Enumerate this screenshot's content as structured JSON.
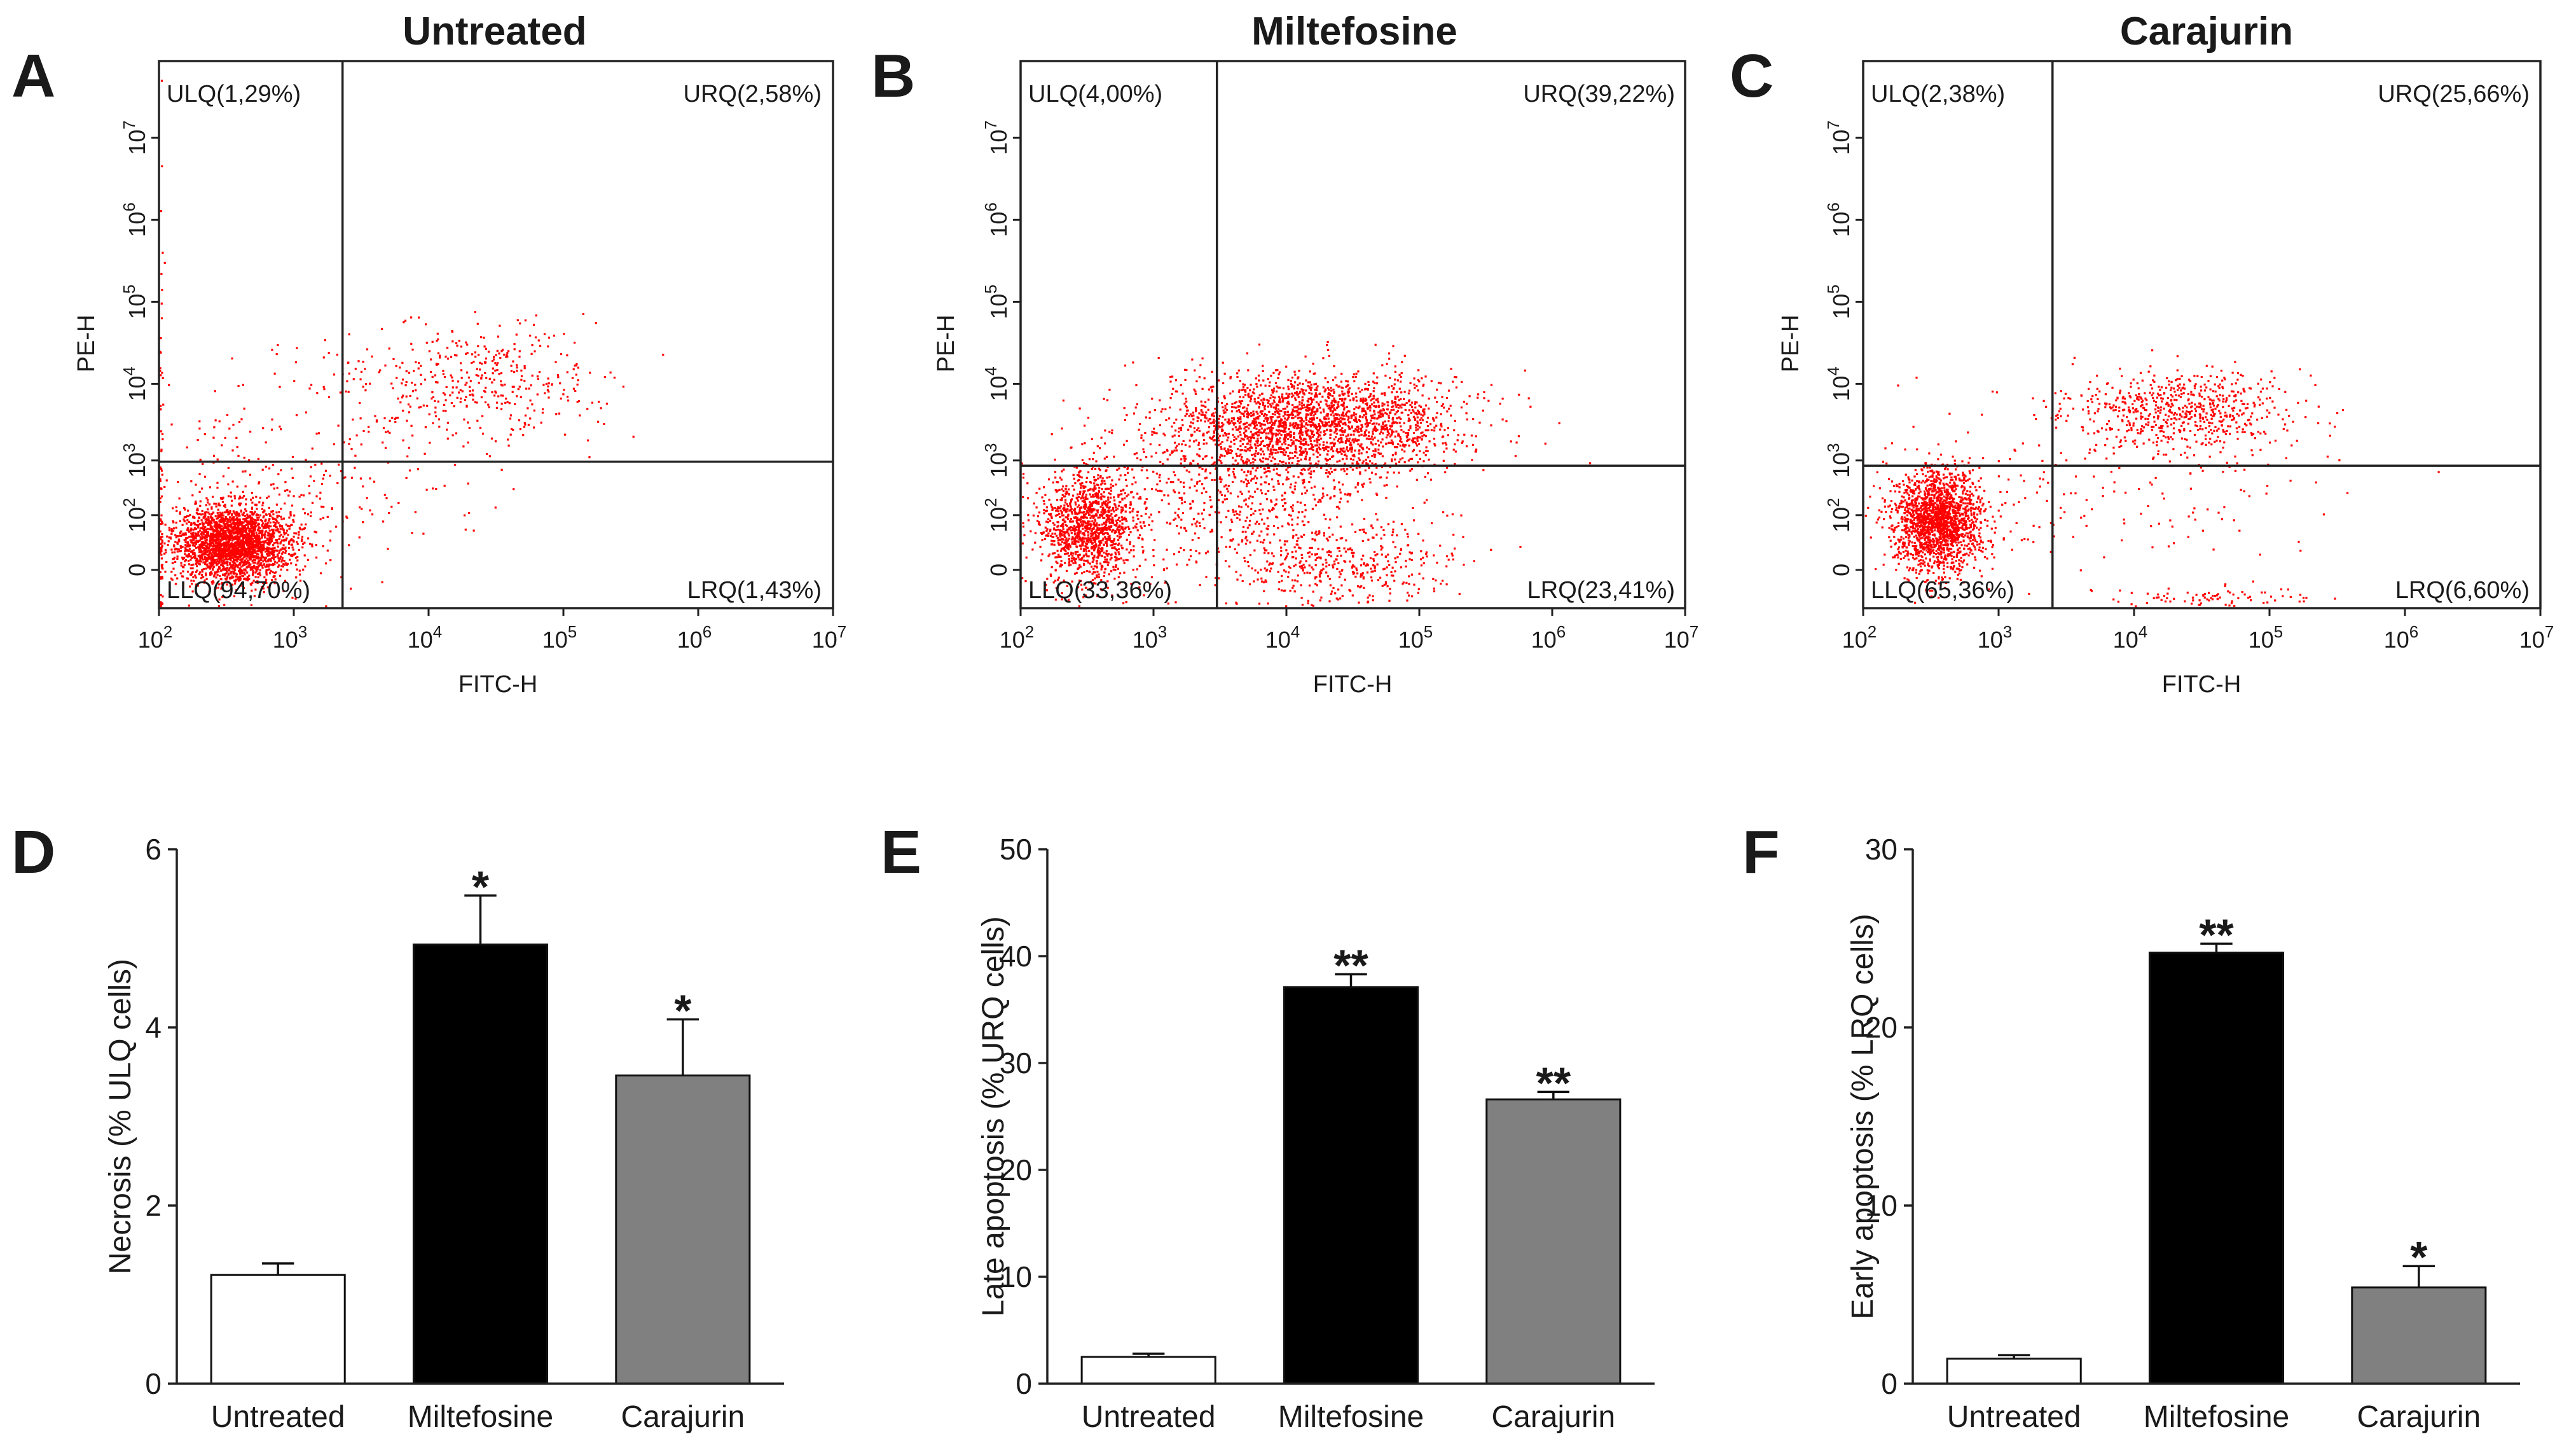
{
  "figure": {
    "panels": {
      "A": {
        "letter": "A",
        "title": "Untreated",
        "ulq": "ULQ(1,29%)",
        "urq": "URQ(2,58%)",
        "llq": "LLQ(94,70%)",
        "lrq": "LRQ(1,43%)"
      },
      "B": {
        "letter": "B",
        "title": "Miltefosine",
        "ulq": "ULQ(4,00%)",
        "urq": "URQ(39,22%)",
        "llq": "LLQ(33,36%)",
        "lrq": "LRQ(23,41%)"
      },
      "C": {
        "letter": "C",
        "title": "Carajurin",
        "ulq": "ULQ(2,38%)",
        "urq": "URQ(25,66%)",
        "llq": "LLQ(65,36%)",
        "lrq": "LRQ(6,60%)"
      },
      "D": {
        "letter": "D"
      },
      "E": {
        "letter": "E"
      },
      "F": {
        "letter": "F"
      }
    },
    "colors": {
      "dots": "#ff0000",
      "untreated": "#ffffff",
      "miltefosine": "#000000",
      "carajurin": "#808080"
    }
  },
  "chart_data": [
    {
      "type": "scatter",
      "panel": "A",
      "title": "Untreated",
      "xlabel": "FITC-H",
      "ylabel": "PE-H",
      "xscale": "log",
      "yscale": "log",
      "xlim": [
        100,
        10000000
      ],
      "x_ticks": [
        {
          "base": "10",
          "exp": "2"
        },
        {
          "base": "10",
          "exp": "3"
        },
        {
          "base": "10",
          "exp": "4"
        },
        {
          "base": "10",
          "exp": "5"
        },
        {
          "base": "10",
          "exp": "6"
        },
        {
          "base": "10",
          "exp": "7"
        }
      ],
      "y_ticks": [
        {
          "base": "0",
          "exp": ""
        },
        {
          "base": "10",
          "exp": "2"
        },
        {
          "base": "10",
          "exp": "3"
        },
        {
          "base": "10",
          "exp": "4"
        },
        {
          "base": "10",
          "exp": "5"
        },
        {
          "base": "10",
          "exp": "6"
        },
        {
          "base": "10",
          "exp": "7"
        }
      ],
      "x_gate": 2300,
      "y_gate": 950,
      "quadrants_percent": {
        "ULQ": 1.29,
        "URQ": 2.58,
        "LLQ": 94.7,
        "LRQ": 1.43
      }
    },
    {
      "type": "scatter",
      "panel": "B",
      "title": "Miltefosine",
      "xlabel": "FITC-H",
      "ylabel": "PE-H",
      "xscale": "log",
      "yscale": "log",
      "xlim": [
        100,
        10000000
      ],
      "x_ticks": [
        {
          "base": "10",
          "exp": "2"
        },
        {
          "base": "10",
          "exp": "3"
        },
        {
          "base": "10",
          "exp": "4"
        },
        {
          "base": "10",
          "exp": "5"
        },
        {
          "base": "10",
          "exp": "6"
        },
        {
          "base": "10",
          "exp": "7"
        }
      ],
      "y_ticks": [
        {
          "base": "0",
          "exp": ""
        },
        {
          "base": "10",
          "exp": "2"
        },
        {
          "base": "10",
          "exp": "3"
        },
        {
          "base": "10",
          "exp": "4"
        },
        {
          "base": "10",
          "exp": "5"
        },
        {
          "base": "10",
          "exp": "6"
        },
        {
          "base": "10",
          "exp": "7"
        }
      ],
      "x_gate": 3000,
      "y_gate": 800,
      "quadrants_percent": {
        "ULQ": 4.0,
        "URQ": 39.22,
        "LLQ": 33.36,
        "LRQ": 23.41
      }
    },
    {
      "type": "scatter",
      "panel": "C",
      "title": "Carajurin",
      "xlabel": "FITC-H",
      "ylabel": "PE-H",
      "xscale": "log",
      "yscale": "log",
      "xlim": [
        100,
        10000000
      ],
      "x_ticks": [
        {
          "base": "10",
          "exp": "2"
        },
        {
          "base": "10",
          "exp": "3"
        },
        {
          "base": "10",
          "exp": "4"
        },
        {
          "base": "10",
          "exp": "5"
        },
        {
          "base": "10",
          "exp": "6"
        },
        {
          "base": "10",
          "exp": "7"
        }
      ],
      "y_ticks": [
        {
          "base": "0",
          "exp": ""
        },
        {
          "base": "10",
          "exp": "2"
        },
        {
          "base": "10",
          "exp": "3"
        },
        {
          "base": "10",
          "exp": "4"
        },
        {
          "base": "10",
          "exp": "5"
        },
        {
          "base": "10",
          "exp": "6"
        },
        {
          "base": "10",
          "exp": "7"
        }
      ],
      "x_gate": 2500,
      "y_gate": 800,
      "quadrants_percent": {
        "ULQ": 2.38,
        "URQ": 25.66,
        "LLQ": 65.36,
        "LRQ": 6.6
      }
    },
    {
      "type": "bar",
      "panel": "D",
      "categories": [
        "Untreated",
        "Miltefosine",
        "Carajurin"
      ],
      "values": [
        1.22,
        4.93,
        3.46
      ],
      "errors": [
        0.13,
        0.55,
        0.63
      ],
      "significance": [
        "",
        "*",
        "*"
      ],
      "ylabel": "Necrosis (% ULQ cells)",
      "ylim": [
        0,
        6
      ],
      "yticks": [
        0,
        2,
        4,
        6
      ]
    },
    {
      "type": "bar",
      "panel": "E",
      "categories": [
        "Untreated",
        "Miltefosine",
        "Carajurin"
      ],
      "values": [
        2.5,
        37.1,
        26.6
      ],
      "errors": [
        0.3,
        1.2,
        0.7
      ],
      "significance": [
        "",
        "**",
        "**"
      ],
      "ylabel": "Late apoptosis (% URQ cells)",
      "ylim": [
        0,
        50
      ],
      "yticks": [
        0,
        10,
        20,
        30,
        40,
        50
      ]
    },
    {
      "type": "bar",
      "panel": "F",
      "categories": [
        "Untreated",
        "Miltefosine",
        "Carajurin"
      ],
      "values": [
        1.4,
        24.2,
        5.4
      ],
      "errors": [
        0.2,
        0.5,
        1.2
      ],
      "significance": [
        "",
        "**",
        "*"
      ],
      "ylabel": "Early apoptosis (% LRQ cells)",
      "ylim": [
        0,
        30
      ],
      "yticks": [
        0,
        10,
        20,
        30
      ]
    }
  ]
}
